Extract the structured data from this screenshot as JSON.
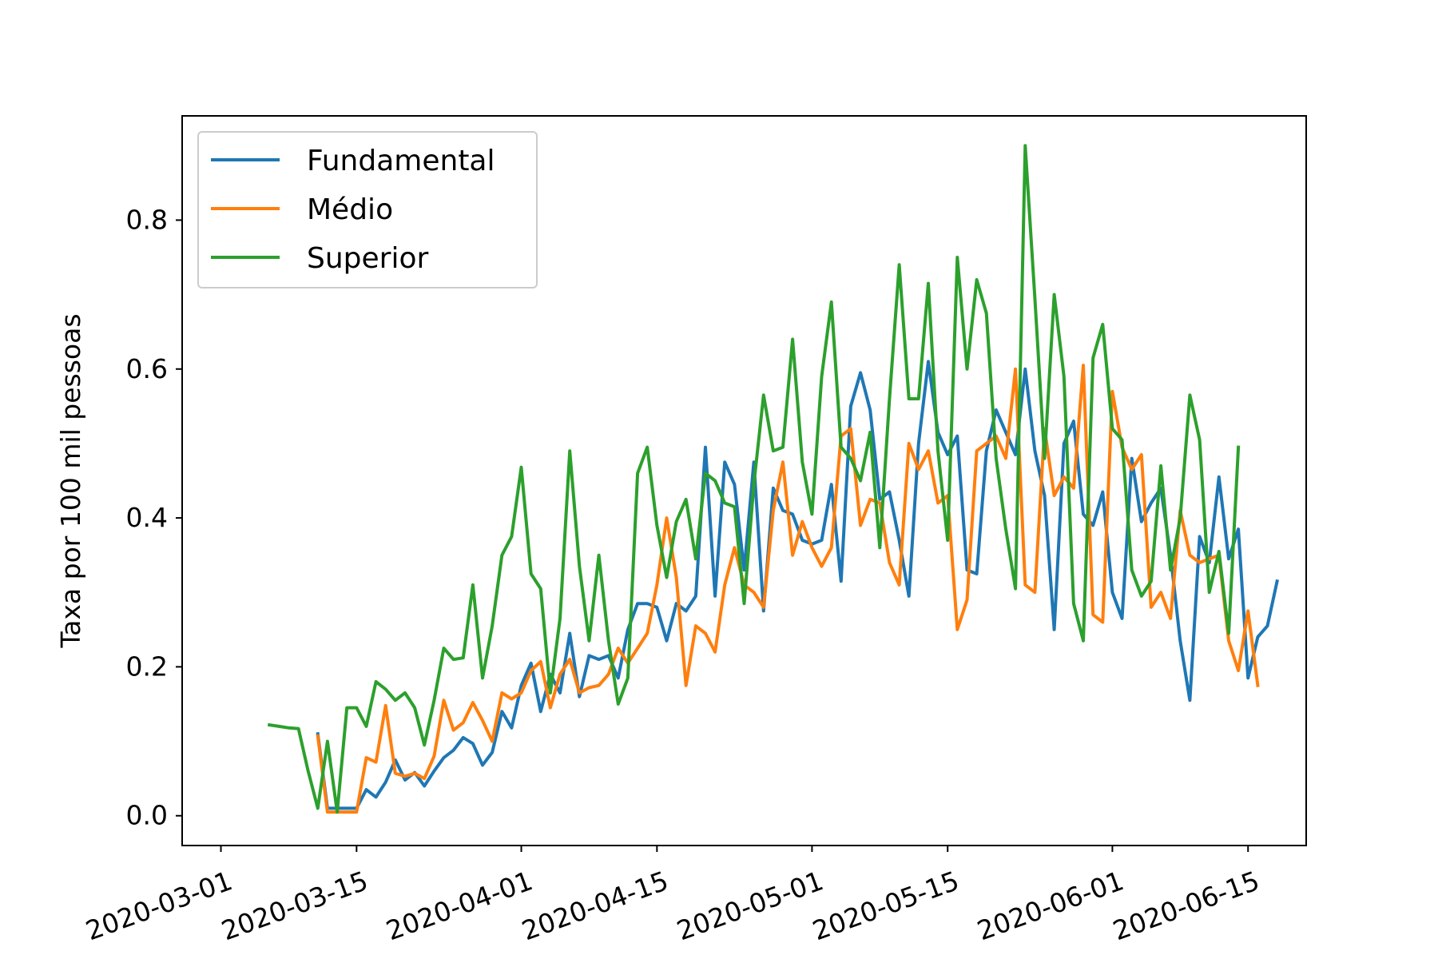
{
  "chart_data": {
    "type": "line",
    "title": "",
    "xlabel": "",
    "ylabel": "Taxa por 100 mil pessoas",
    "x_ticks": [
      "2020-03-01",
      "2020-03-15",
      "2020-04-01",
      "2020-04-15",
      "2020-05-01",
      "2020-05-15",
      "2020-06-01",
      "2020-06-15"
    ],
    "y_ticks": [
      "0.0",
      "0.2",
      "0.4",
      "0.6",
      "0.8"
    ],
    "xlim": [
      "2020-02-26",
      "2020-06-21"
    ],
    "ylim": [
      -0.04,
      0.94
    ],
    "grid": false,
    "legend_position": "upper-left",
    "series": [
      {
        "name": "Fundamental",
        "color": "#1f77b4",
        "start_date": "2020-03-11",
        "values": [
          0.11,
          0.01,
          0.01,
          0.01,
          0.01,
          0.035,
          0.025,
          0.045,
          0.075,
          0.048,
          0.058,
          0.04,
          0.06,
          0.078,
          0.088,
          0.105,
          0.097,
          0.068,
          0.085,
          0.14,
          0.118,
          0.175,
          0.205,
          0.14,
          0.19,
          0.165,
          0.245,
          0.16,
          0.215,
          0.21,
          0.215,
          0.185,
          0.25,
          0.285,
          0.285,
          0.28,
          0.235,
          0.285,
          0.275,
          0.295,
          0.495,
          0.295,
          0.475,
          0.445,
          0.33,
          0.475,
          0.275,
          0.44,
          0.41,
          0.405,
          0.37,
          0.365,
          0.37,
          0.445,
          0.315,
          0.55,
          0.595,
          0.545,
          0.425,
          0.435,
          0.37,
          0.295,
          0.5,
          0.61,
          0.515,
          0.485,
          0.51,
          0.33,
          0.325,
          0.49,
          0.545,
          0.515,
          0.485,
          0.6,
          0.49,
          0.43,
          0.25,
          0.5,
          0.53,
          0.405,
          0.39,
          0.435,
          0.3,
          0.265,
          0.48,
          0.395,
          0.42,
          0.44,
          0.35,
          0.235,
          0.155,
          0.375,
          0.34,
          0.455,
          0.345,
          0.385,
          0.185,
          0.24,
          0.255,
          0.315
        ]
      },
      {
        "name": "Médio",
        "color": "#ff7f0e",
        "start_date": "2020-03-11",
        "values": [
          0.107,
          0.005,
          0.005,
          0.005,
          0.005,
          0.078,
          0.072,
          0.148,
          0.057,
          0.053,
          0.057,
          0.05,
          0.08,
          0.155,
          0.115,
          0.125,
          0.152,
          0.128,
          0.1,
          0.165,
          0.157,
          0.165,
          0.195,
          0.207,
          0.145,
          0.19,
          0.21,
          0.165,
          0.172,
          0.175,
          0.19,
          0.225,
          0.205,
          0.225,
          0.245,
          0.31,
          0.4,
          0.32,
          0.175,
          0.255,
          0.245,
          0.22,
          0.31,
          0.36,
          0.31,
          0.3,
          0.28,
          0.41,
          0.475,
          0.35,
          0.395,
          0.36,
          0.335,
          0.36,
          0.51,
          0.52,
          0.39,
          0.425,
          0.42,
          0.34,
          0.31,
          0.5,
          0.465,
          0.49,
          0.42,
          0.43,
          0.25,
          0.29,
          0.49,
          0.5,
          0.51,
          0.48,
          0.6,
          0.31,
          0.3,
          0.52,
          0.43,
          0.455,
          0.44,
          0.605,
          0.27,
          0.26,
          0.57,
          0.495,
          0.465,
          0.485,
          0.28,
          0.3,
          0.265,
          0.41,
          0.35,
          0.34,
          0.345,
          0.35,
          0.235,
          0.195,
          0.275,
          0.175
        ]
      },
      {
        "name": "Superior",
        "color": "#2ca02c",
        "start_date": "2020-03-06",
        "values": [
          0.122,
          0.12,
          0.118,
          0.117,
          0.06,
          0.01,
          0.1,
          0.005,
          0.145,
          0.145,
          0.12,
          0.18,
          0.17,
          0.155,
          0.165,
          0.145,
          0.095,
          0.155,
          0.225,
          0.21,
          0.212,
          0.31,
          0.185,
          0.255,
          0.35,
          0.375,
          0.468,
          0.325,
          0.305,
          0.165,
          0.265,
          0.49,
          0.335,
          0.235,
          0.35,
          0.235,
          0.15,
          0.185,
          0.46,
          0.495,
          0.39,
          0.32,
          0.395,
          0.425,
          0.345,
          0.46,
          0.45,
          0.42,
          0.415,
          0.285,
          0.445,
          0.565,
          0.49,
          0.495,
          0.64,
          0.475,
          0.405,
          0.59,
          0.69,
          0.495,
          0.48,
          0.45,
          0.515,
          0.36,
          0.56,
          0.74,
          0.56,
          0.56,
          0.715,
          0.49,
          0.37,
          0.75,
          0.6,
          0.72,
          0.675,
          0.48,
          0.385,
          0.305,
          0.9,
          0.695,
          0.48,
          0.7,
          0.59,
          0.285,
          0.235,
          0.615,
          0.66,
          0.52,
          0.505,
          0.33,
          0.295,
          0.315,
          0.47,
          0.33,
          0.4,
          0.565,
          0.505,
          0.3,
          0.355,
          0.245,
          0.495
        ]
      }
    ]
  }
}
